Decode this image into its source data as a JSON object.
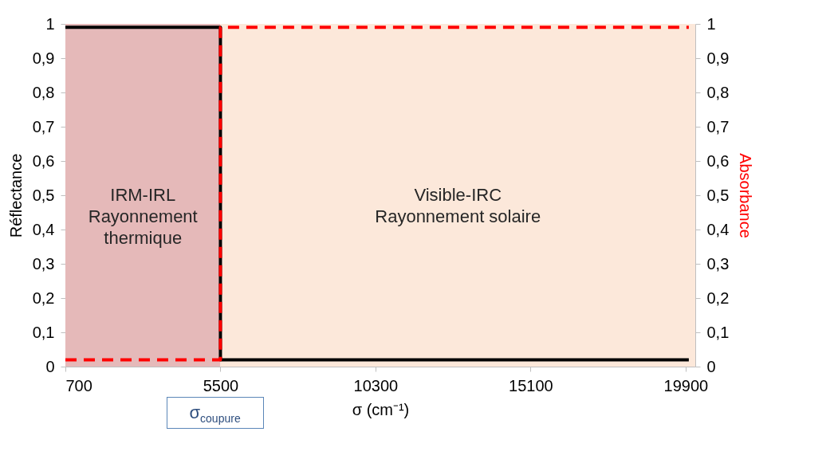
{
  "chart_data": {
    "type": "step",
    "xlabel": "σ (cm⁻¹)",
    "ylabel": "Réflectance",
    "y2label": "Absorbance",
    "xlim": [
      700,
      20200
    ],
    "xticks": [
      700,
      5500,
      10300,
      15100,
      19900
    ],
    "ylim": [
      0,
      1
    ],
    "yticks": [
      0,
      {
        "value": 0.1,
        "label": "0,1"
      },
      {
        "value": 0.2,
        "label": "0,2"
      },
      {
        "value": 0.3,
        "label": "0,3"
      },
      {
        "value": 0.4,
        "label": "0,4"
      },
      {
        "value": 0.5,
        "label": "0,5"
      },
      {
        "value": 0.6,
        "label": "0,6"
      },
      {
        "value": 0.7,
        "label": "0,7"
      },
      {
        "value": 0.8,
        "label": "0,8"
      },
      {
        "value": 0.9,
        "label": "0,9"
      },
      1
    ],
    "y2lim": [
      0,
      1
    ],
    "y2ticks": [
      0,
      {
        "value": 0.1,
        "label": "0,1"
      },
      {
        "value": 0.2,
        "label": "0,2"
      },
      {
        "value": 0.3,
        "label": "0,3"
      },
      {
        "value": 0.4,
        "label": "0,4"
      },
      {
        "value": 0.5,
        "label": "0,5"
      },
      {
        "value": 0.6,
        "label": "0,6"
      },
      {
        "value": 0.7,
        "label": "0,7"
      },
      {
        "value": 0.8,
        "label": "0,8"
      },
      {
        "value": 0.9,
        "label": "0,9"
      },
      1
    ],
    "series": [
      {
        "color": "#000000",
        "line_style": "solid",
        "x": [
          700,
          5500,
          20000
        ],
        "values": [
          0.99,
          0.02,
          0.02
        ]
      },
      {
        "color": "#ff0000",
        "line_style": "dashed",
        "axis": "y2",
        "x": [
          700,
          5500,
          20000
        ],
        "values": [
          0.02,
          0.99,
          0.99
        ]
      }
    ],
    "bands": [
      {
        "axis": "x",
        "from": 700,
        "to": 5500,
        "label": "IRM-IRL\nRayonnement\nthermique",
        "color": "#e5b9b9"
      },
      {
        "axis": "x",
        "from": 5500,
        "to": 20200,
        "label": "Visible-IRC\nRayonnement solaire",
        "color": "#fce8da"
      }
    ],
    "annotations": [
      "σ$_{coupure}$"
    ],
    "grid": false
  }
}
